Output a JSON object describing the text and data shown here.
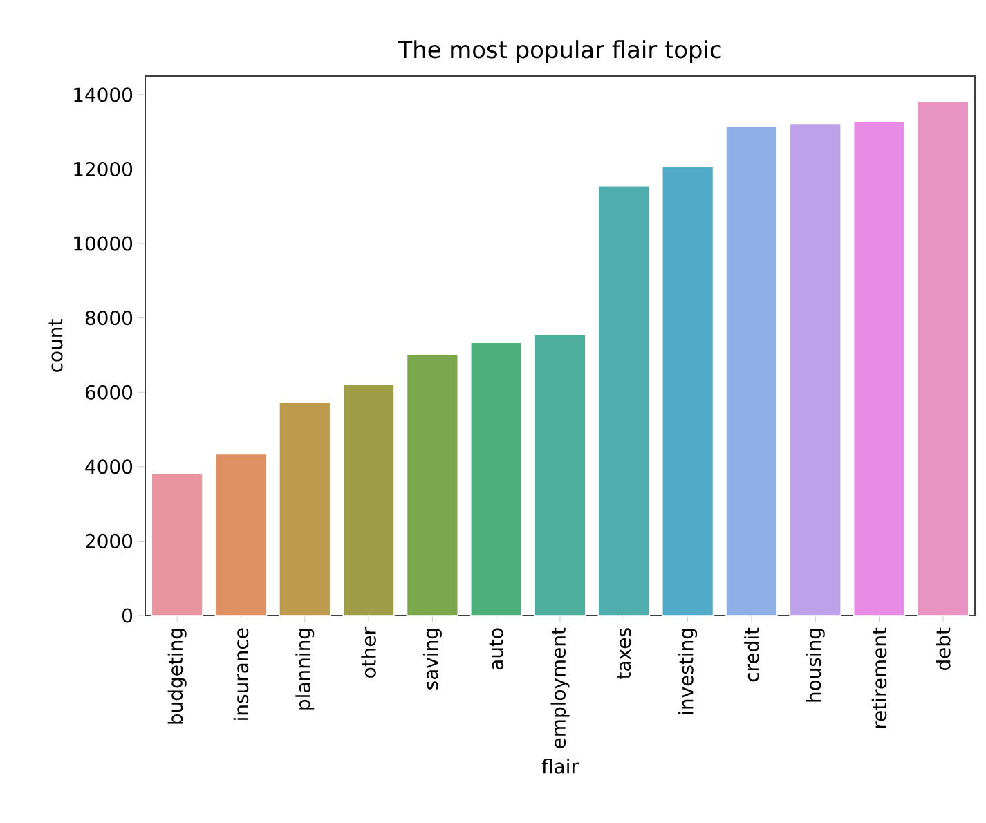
{
  "chart_data": {
    "type": "bar",
    "title": "The most popular flair topic",
    "xlabel": "flair",
    "ylabel": "count",
    "categories": [
      "budgeting",
      "insurance",
      "planning",
      "other",
      "saving",
      "auto",
      "employment",
      "taxes",
      "investing",
      "credit",
      "housing",
      "retirement",
      "debt"
    ],
    "values": [
      3810,
      4340,
      5740,
      6210,
      7020,
      7340,
      7550,
      11550,
      12070,
      13150,
      13210,
      13290,
      13820
    ],
    "colors": [
      "#e9949f",
      "#e19063",
      "#bd9a4c",
      "#a09d47",
      "#7ca84d",
      "#4db07a",
      "#4eae9c",
      "#4fadad",
      "#52abc9",
      "#8eaee6",
      "#bea2e9",
      "#e88be6",
      "#e794c2"
    ],
    "ylim": [
      0,
      14500
    ],
    "yticks": [
      0,
      2000,
      4000,
      6000,
      8000,
      10000,
      12000,
      14000
    ]
  }
}
